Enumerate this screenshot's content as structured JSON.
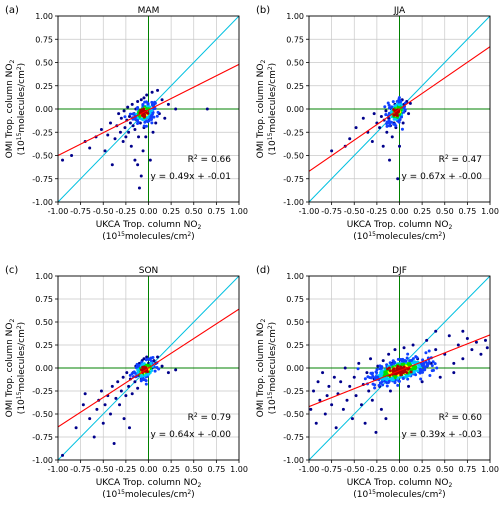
{
  "figure": {
    "xlabel_line1": "UKCA Trop. column NO",
    "xlabel_line2": "(10",
    "ylabel_line1": "OMI Trop. column NO",
    "ylabel_line2": "(10",
    "sub2": "2",
    "exp15": "15",
    "exp2": "2",
    "units_mid": "molecules/cm",
    "units_end": ")",
    "r2_prefix": "R",
    "r2_sup": "2",
    "r2_eq": " = "
  },
  "colors": {
    "fit_line": "#ff0000",
    "one_to_one_line": "#00c0e0",
    "zero_lines": "#008000",
    "grid": "#c8c8c8",
    "scatter_sparse": "#00008b",
    "scatter_dense_mid": "#00e000",
    "scatter_dense_core": "#ffff00"
  },
  "chart_data": [
    {
      "type": "scatter",
      "panel_label": "(a)",
      "title": "MAM",
      "xlim": [
        -1.0,
        1.0
      ],
      "ylim": [
        -1.0,
        1.0
      ],
      "xticks": [
        "-1.00",
        "-0.75",
        "-0.50",
        "-0.25",
        "0.00",
        "0.25",
        "0.50",
        "0.75",
        "1.00"
      ],
      "yticks": [
        "-1.00",
        "-0.75",
        "-0.50",
        "-0.25",
        "0.00",
        "0.25",
        "0.50",
        "0.75",
        "1.00"
      ],
      "grid": true,
      "r2": "0.66",
      "equation": "y = 0.49x + -0.01",
      "fit": {
        "slope": 0.49,
        "intercept": -0.01
      },
      "points": [
        [
          -0.95,
          -0.55
        ],
        [
          -0.85,
          -0.5
        ],
        [
          -0.7,
          -0.35
        ],
        [
          -0.65,
          -0.42
        ],
        [
          -0.58,
          -0.3
        ],
        [
          -0.52,
          -0.22
        ],
        [
          -0.48,
          -0.45
        ],
        [
          -0.45,
          -0.28
        ],
        [
          -0.42,
          -0.15
        ],
        [
          -0.4,
          -0.6
        ],
        [
          -0.37,
          -0.32
        ],
        [
          -0.35,
          -0.18
        ],
        [
          -0.33,
          -0.05
        ],
        [
          -0.31,
          -0.25
        ],
        [
          -0.3,
          -0.1
        ],
        [
          -0.28,
          -0.35
        ],
        [
          -0.27,
          -0.02
        ],
        [
          -0.26,
          -0.2
        ],
        [
          -0.25,
          -0.3
        ],
        [
          -0.24,
          -0.12
        ],
        [
          -0.23,
          0.02
        ],
        [
          -0.22,
          -0.25
        ],
        [
          -0.21,
          -0.08
        ],
        [
          -0.2,
          -0.15
        ],
        [
          -0.19,
          -0.4
        ],
        [
          -0.18,
          0.05
        ],
        [
          -0.17,
          -0.18
        ],
        [
          -0.16,
          -0.05
        ],
        [
          -0.15,
          -0.22
        ],
        [
          -0.15,
          -0.55
        ],
        [
          -0.14,
          0.0
        ],
        [
          -0.13,
          -0.12
        ],
        [
          -0.12,
          -0.6
        ],
        [
          -0.12,
          0.08
        ],
        [
          -0.11,
          -0.3
        ],
        [
          -0.1,
          -0.85
        ],
        [
          -0.1,
          -0.05
        ],
        [
          -0.09,
          -0.15
        ],
        [
          -0.08,
          -0.72
        ],
        [
          -0.08,
          0.1
        ],
        [
          -0.07,
          -0.1
        ],
        [
          -0.06,
          -0.45
        ],
        [
          -0.05,
          0.12
        ],
        [
          -0.05,
          -0.2
        ],
        [
          -0.04,
          -0.05
        ],
        [
          -0.03,
          -0.3
        ],
        [
          -0.02,
          0.15
        ],
        [
          0.0,
          -0.1
        ],
        [
          0.02,
          -0.55
        ],
        [
          0.04,
          0.18
        ],
        [
          0.05,
          -0.25
        ],
        [
          0.06,
          0.05
        ],
        [
          0.08,
          -0.15
        ],
        [
          0.1,
          0.2
        ],
        [
          0.12,
          -0.05
        ],
        [
          0.15,
          0.1
        ],
        [
          0.18,
          -0.1
        ],
        [
          0.22,
          0.05
        ],
        [
          0.3,
          0.0
        ],
        [
          0.65,
          0.0
        ]
      ],
      "dense": {
        "cx": -0.05,
        "cy": -0.04,
        "spread_x": 0.06,
        "spread_y": 0.05,
        "count": 160
      }
    },
    {
      "type": "scatter",
      "panel_label": "(b)",
      "title": "JJA",
      "xlim": [
        -1.0,
        1.0
      ],
      "ylim": [
        -1.0,
        1.0
      ],
      "xticks": [
        "-1.00",
        "-0.75",
        "-0.50",
        "-0.25",
        "0.00",
        "0.25",
        "0.50",
        "0.75",
        "1.00"
      ],
      "yticks": [
        "-1.00",
        "-0.75",
        "-0.50",
        "-0.25",
        "0.00",
        "0.25",
        "0.50",
        "0.75",
        "1.00"
      ],
      "grid": true,
      "r2": "0.47",
      "equation": "y = 0.67x + -0.00",
      "fit": {
        "slope": 0.67,
        "intercept": 0.0
      },
      "points": [
        [
          -0.75,
          -0.45
        ],
        [
          -0.6,
          -0.4
        ],
        [
          -0.55,
          -0.32
        ],
        [
          -0.48,
          -0.2
        ],
        [
          -0.4,
          -0.1
        ],
        [
          -0.35,
          -0.25
        ],
        [
          -0.3,
          -0.35
        ],
        [
          -0.28,
          -0.05
        ],
        [
          -0.25,
          -0.15
        ],
        [
          -0.22,
          -0.2
        ],
        [
          -0.2,
          -0.08
        ],
        [
          -0.18,
          -0.4
        ],
        [
          -0.17,
          -0.12
        ],
        [
          -0.15,
          -0.02
        ],
        [
          -0.14,
          -0.25
        ],
        [
          -0.12,
          -0.1
        ],
        [
          -0.11,
          -0.55
        ],
        [
          -0.1,
          -0.18
        ],
        [
          -0.09,
          0.0
        ],
        [
          -0.08,
          -0.3
        ],
        [
          -0.07,
          -0.05
        ],
        [
          -0.06,
          -0.15
        ],
        [
          -0.05,
          0.05
        ],
        [
          -0.04,
          -0.2
        ],
        [
          -0.03,
          -0.08
        ],
        [
          -0.02,
          -0.75
        ],
        [
          -0.02,
          0.08
        ],
        [
          -0.01,
          -0.12
        ],
        [
          0.0,
          -0.4
        ],
        [
          0.01,
          0.02
        ],
        [
          0.02,
          -0.05
        ],
        [
          0.03,
          0.1
        ],
        [
          0.04,
          -0.15
        ],
        [
          0.05,
          0.05
        ],
        [
          0.06,
          -0.02
        ],
        [
          0.08,
          0.08
        ],
        [
          0.1,
          -0.05
        ],
        [
          0.12,
          0.06
        ]
      ],
      "dense": {
        "cx": -0.03,
        "cy": -0.03,
        "spread_x": 0.05,
        "spread_y": 0.06,
        "count": 130
      }
    },
    {
      "type": "scatter",
      "panel_label": "(c)",
      "title": "SON",
      "xlim": [
        -1.0,
        1.0
      ],
      "ylim": [
        -1.0,
        1.0
      ],
      "xticks": [
        "-1.00",
        "-0.75",
        "-0.50",
        "-0.25",
        "0.00",
        "0.25",
        "0.50",
        "0.75",
        "1.00"
      ],
      "yticks": [
        "-1.00",
        "-0.75",
        "-0.50",
        "-0.25",
        "0.00",
        "0.25",
        "0.50",
        "0.75",
        "1.00"
      ],
      "grid": true,
      "r2": "0.79",
      "equation": "y = 0.64x + -0.00",
      "fit": {
        "slope": 0.64,
        "intercept": 0.0
      },
      "points": [
        [
          -0.95,
          -0.95
        ],
        [
          -0.8,
          -0.65
        ],
        [
          -0.72,
          -0.4
        ],
        [
          -0.7,
          -0.28
        ],
        [
          -0.65,
          -0.55
        ],
        [
          -0.6,
          -0.75
        ],
        [
          -0.57,
          -0.45
        ],
        [
          -0.55,
          -0.35
        ],
        [
          -0.52,
          -0.25
        ],
        [
          -0.5,
          -0.6
        ],
        [
          -0.48,
          -0.4
        ],
        [
          -0.45,
          -0.3
        ],
        [
          -0.42,
          -0.5
        ],
        [
          -0.4,
          -0.2
        ],
        [
          -0.38,
          -0.82
        ],
        [
          -0.36,
          -0.33
        ],
        [
          -0.34,
          -0.15
        ],
        [
          -0.32,
          -0.4
        ],
        [
          -0.3,
          -0.25
        ],
        [
          -0.28,
          -0.1
        ],
        [
          -0.27,
          -0.55
        ],
        [
          -0.25,
          -0.3
        ],
        [
          -0.24,
          -0.05
        ],
        [
          -0.22,
          -0.2
        ],
        [
          -0.21,
          -0.65
        ],
        [
          -0.2,
          -0.12
        ],
        [
          -0.18,
          -0.28
        ],
        [
          -0.17,
          -0.05
        ],
        [
          -0.15,
          -0.15
        ],
        [
          -0.14,
          0.02
        ],
        [
          -0.12,
          -0.22
        ],
        [
          -0.11,
          -0.08
        ],
        [
          -0.1,
          0.05
        ],
        [
          -0.08,
          -0.12
        ],
        [
          -0.07,
          0.08
        ],
        [
          -0.06,
          -0.02
        ],
        [
          -0.05,
          0.1
        ],
        [
          -0.04,
          -0.06
        ],
        [
          -0.02,
          0.12
        ],
        [
          0.0,
          0.05
        ],
        [
          0.02,
          0.1
        ],
        [
          0.04,
          0.0
        ],
        [
          0.06,
          0.08
        ],
        [
          0.08,
          0.05
        ],
        [
          0.1,
          0.12
        ],
        [
          0.15,
          0.02
        ],
        [
          0.22,
          -0.05
        ],
        [
          0.3,
          -0.02
        ]
      ],
      "dense": {
        "cx": -0.04,
        "cy": -0.02,
        "spread_x": 0.06,
        "spread_y": 0.05,
        "count": 140
      }
    },
    {
      "type": "scatter",
      "panel_label": "(d)",
      "title": "DJF",
      "xlim": [
        -1.0,
        1.0
      ],
      "ylim": [
        -1.0,
        1.0
      ],
      "xticks": [
        "-1.00",
        "-0.75",
        "-0.50",
        "-0.25",
        "0.00",
        "0.25",
        "0.50",
        "0.75",
        "1.00"
      ],
      "yticks": [
        "-1.00",
        "-0.75",
        "-0.50",
        "-0.25",
        "0.00",
        "0.25",
        "0.50",
        "0.75",
        "1.00"
      ],
      "grid": true,
      "r2": "0.60",
      "equation": "y = 0.39x + -0.03",
      "fit": {
        "slope": 0.39,
        "intercept": -0.03
      },
      "points": [
        [
          -0.98,
          -0.45
        ],
        [
          -0.95,
          -0.25
        ],
        [
          -0.92,
          -0.6
        ],
        [
          -0.9,
          -0.15
        ],
        [
          -0.88,
          -0.35
        ],
        [
          -0.85,
          -0.05
        ],
        [
          -0.82,
          -0.5
        ],
        [
          -0.8,
          -0.3
        ],
        [
          -0.78,
          -0.2
        ],
        [
          -0.75,
          -0.4
        ],
        [
          -0.72,
          -0.1
        ],
        [
          -0.7,
          -0.65
        ],
        [
          -0.68,
          -0.28
        ],
        [
          -0.65,
          -0.15
        ],
        [
          -0.62,
          -0.45
        ],
        [
          -0.6,
          0.0
        ],
        [
          -0.58,
          -0.35
        ],
        [
          -0.55,
          -0.2
        ],
        [
          -0.52,
          -0.55
        ],
        [
          -0.5,
          -0.1
        ],
        [
          -0.48,
          -0.3
        ],
        [
          -0.45,
          0.05
        ],
        [
          -0.42,
          -0.4
        ],
        [
          -0.4,
          -0.18
        ],
        [
          -0.38,
          -0.6
        ],
        [
          -0.36,
          -0.05
        ],
        [
          -0.34,
          -0.25
        ],
        [
          -0.32,
          0.1
        ],
        [
          -0.3,
          -0.35
        ],
        [
          -0.28,
          -0.12
        ],
        [
          -0.26,
          -0.7
        ],
        [
          -0.24,
          0.02
        ],
        [
          -0.22,
          -0.2
        ],
        [
          -0.2,
          -0.45
        ],
        [
          -0.18,
          0.08
        ],
        [
          -0.16,
          -0.08
        ],
        [
          -0.15,
          -0.55
        ],
        [
          -0.12,
          0.15
        ],
        [
          -0.1,
          -0.25
        ],
        [
          -0.08,
          0.05
        ],
        [
          -0.05,
          0.2
        ],
        [
          0.05,
          0.22
        ],
        [
          0.1,
          -0.2
        ],
        [
          0.15,
          0.25
        ],
        [
          0.2,
          0.1
        ],
        [
          0.25,
          -0.15
        ],
        [
          0.3,
          0.3
        ],
        [
          0.35,
          0.05
        ],
        [
          0.4,
          0.2
        ],
        [
          0.45,
          -0.1
        ],
        [
          0.5,
          0.15
        ],
        [
          0.55,
          0.35
        ],
        [
          0.6,
          0.05
        ],
        [
          0.65,
          0.25
        ],
        [
          0.7,
          0.1
        ],
        [
          0.75,
          0.32
        ],
        [
          0.8,
          0.2
        ],
        [
          0.85,
          0.28
        ],
        [
          0.9,
          0.15
        ],
        [
          0.95,
          0.3
        ],
        [
          0.97,
          0.22
        ],
        [
          0.6,
          -0.05
        ],
        [
          0.4,
          0.4
        ],
        [
          0.7,
          0.4
        ]
      ],
      "dense": {
        "cx": 0.0,
        "cy": -0.03,
        "spread_x": 0.16,
        "spread_y": 0.06,
        "count": 420
      }
    }
  ]
}
